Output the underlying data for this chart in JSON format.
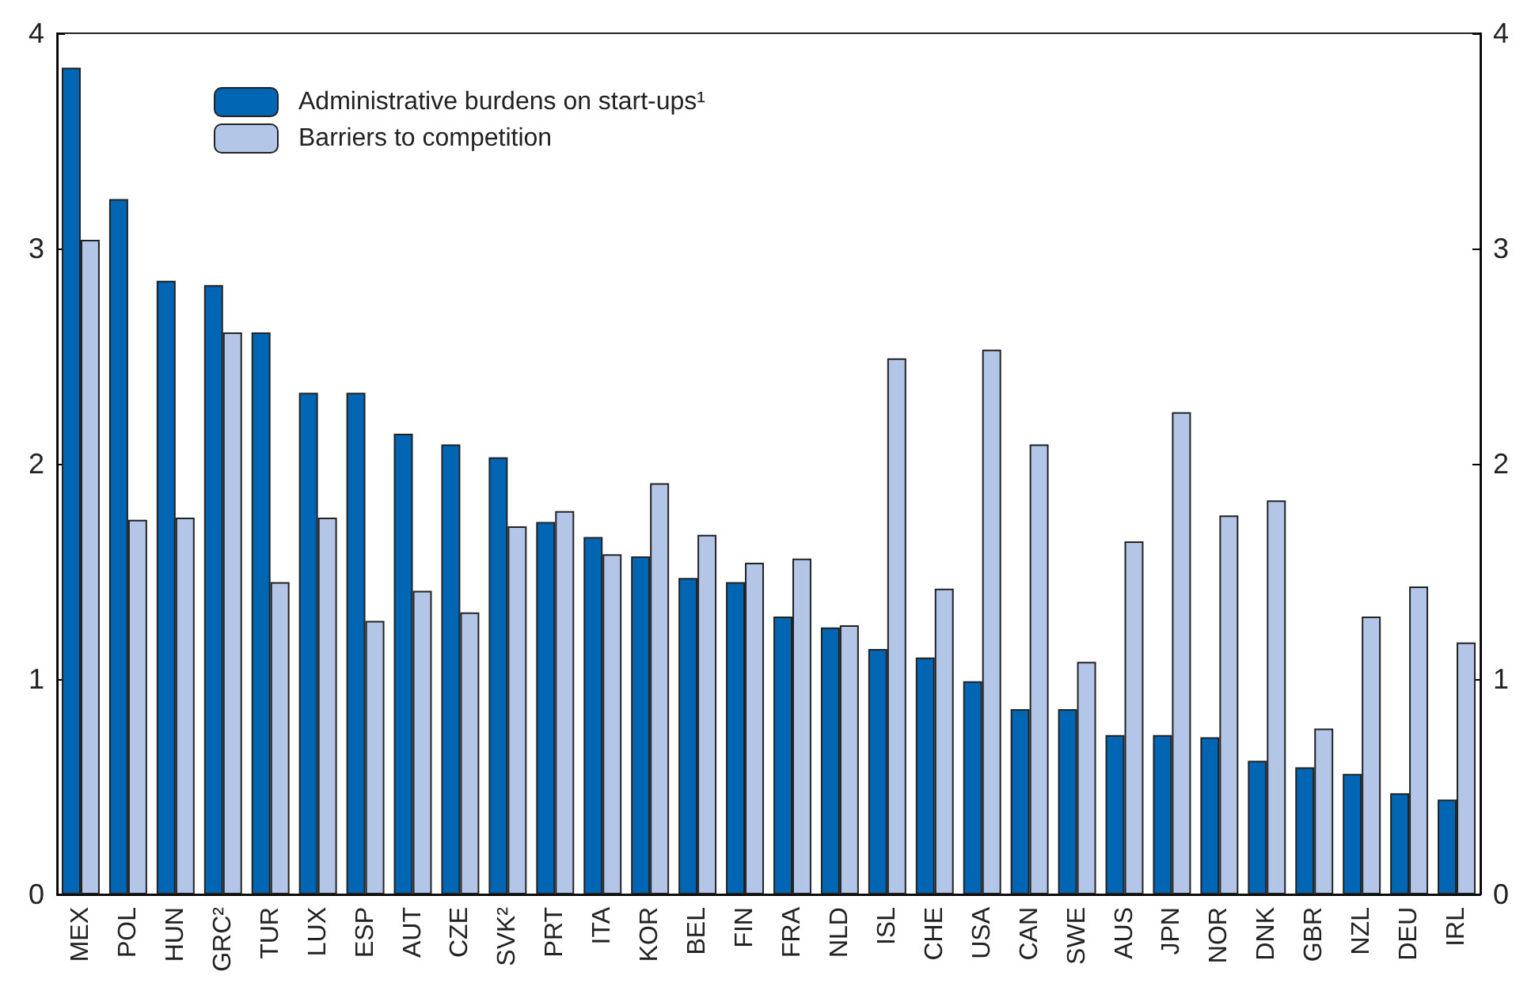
{
  "chart_data": {
    "type": "bar",
    "categories": [
      "MEX",
      "POL",
      "HUN",
      "GRC²",
      "TUR",
      "LUX",
      "ESP",
      "AUT",
      "CZE",
      "SVK²",
      "PRT",
      "ITA",
      "KOR",
      "BEL",
      "FIN",
      "FRA",
      "NLD",
      "ISL",
      "CHE",
      "USA",
      "CAN",
      "SWE",
      "AUS",
      "JPN",
      "NOR",
      "DNK",
      "GBR",
      "NZL",
      "DEU",
      "IRL"
    ],
    "series": [
      {
        "name": "Administrative burdens on start-ups¹",
        "color": "#0066b3",
        "values": [
          3.84,
          3.23,
          2.85,
          2.83,
          2.61,
          2.33,
          2.33,
          2.14,
          2.09,
          2.03,
          1.73,
          1.66,
          1.57,
          1.47,
          1.45,
          1.29,
          1.24,
          1.14,
          1.1,
          0.99,
          0.86,
          0.86,
          0.74,
          0.74,
          0.73,
          0.62,
          0.59,
          0.56,
          0.47,
          0.44
        ]
      },
      {
        "name": "Barriers to competition",
        "color": "#b3c6e7",
        "values": [
          3.04,
          1.74,
          1.75,
          2.61,
          1.45,
          1.75,
          1.27,
          1.41,
          1.31,
          1.71,
          1.78,
          1.58,
          1.91,
          1.67,
          1.54,
          1.56,
          1.25,
          2.49,
          1.42,
          2.53,
          2.09,
          1.08,
          1.64,
          2.24,
          1.76,
          1.83,
          0.77,
          1.29,
          1.43,
          1.17
        ]
      }
    ],
    "ylim": [
      0,
      4
    ],
    "yticks": [
      0,
      1,
      2,
      3,
      4
    ],
    "y2lim": [
      0,
      4
    ],
    "y2ticks": [
      0,
      1,
      2,
      3,
      4
    ],
    "grid": false,
    "legend": "top left"
  }
}
